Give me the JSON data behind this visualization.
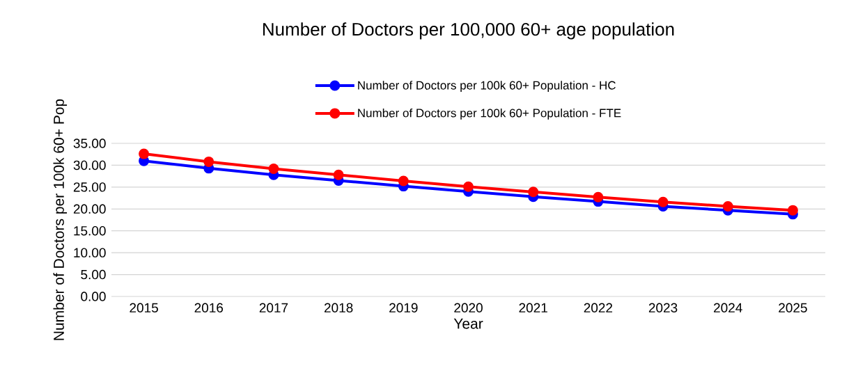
{
  "chart_data": {
    "type": "line",
    "title": "Number of Doctors per 100,000 60+ age population",
    "xlabel": "Year",
    "ylabel": "Number of Doctors per 100k 60+ Pop",
    "categories": [
      "2015",
      "2016",
      "2017",
      "2018",
      "2019",
      "2020",
      "2021",
      "2022",
      "2023",
      "2024",
      "2025"
    ],
    "series": [
      {
        "name": "Number of Doctors per 100k 60+ Population - HC",
        "color": "#0000ff",
        "values": [
          31.0,
          29.3,
          27.8,
          26.5,
          25.2,
          24.0,
          22.8,
          21.7,
          20.6,
          19.7,
          18.8
        ]
      },
      {
        "name": "Number of Doctors per 100k 60+ Population - FTE",
        "color": "#ff0000",
        "values": [
          32.6,
          30.8,
          29.2,
          27.8,
          26.4,
          25.1,
          23.9,
          22.7,
          21.6,
          20.6,
          19.7
        ]
      }
    ],
    "ylim": [
      0,
      35
    ],
    "yticks": [
      {
        "value": 0,
        "label": "0.00"
      },
      {
        "value": 5,
        "label": "5.00"
      },
      {
        "value": 10,
        "label": "10.00"
      },
      {
        "value": 15,
        "label": "15.00"
      },
      {
        "value": 20,
        "label": "20.00"
      },
      {
        "value": 25,
        "label": "25.00"
      },
      {
        "value": 30,
        "label": "30.00"
      },
      {
        "value": 35,
        "label": "35.00"
      }
    ],
    "grid": "y",
    "legend": "top",
    "marker": "circle",
    "line_style": "solid"
  }
}
